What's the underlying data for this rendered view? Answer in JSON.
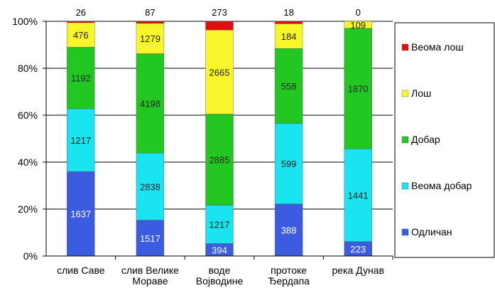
{
  "chart_data": {
    "type": "bar",
    "stacked": "percent",
    "y_tick_labels": [
      "0%",
      "20%",
      "40%",
      "60%",
      "80%",
      "100%"
    ],
    "ylim": [
      0,
      100
    ],
    "grid": true,
    "legend_position": "right",
    "categories": [
      [
        "слив  Саве"
      ],
      [
        "слив  Велике",
        "Мораве"
      ],
      [
        "воде",
        "Војводине"
      ],
      [
        "протоке",
        "Ђердапа"
      ],
      [
        "река Дунав"
      ]
    ],
    "series": [
      {
        "name": "Одличан",
        "color": "#3c5ce0",
        "label_color": "#ffffff",
        "values": [
          1637,
          1517,
          394,
          388,
          223
        ]
      },
      {
        "name": "Веома добар",
        "color": "#19e4ef",
        "label_color": "#222222",
        "values": [
          1217,
          2838,
          1217,
          599,
          1441
        ]
      },
      {
        "name": "Добар",
        "color": "#22c722",
        "label_color": "#222222",
        "values": [
          1192,
          4198,
          2885,
          558,
          1870
        ]
      },
      {
        "name": "Лош",
        "color": "#f8f52a",
        "label_color": "#222222",
        "values": [
          476,
          1279,
          2665,
          184,
          109
        ]
      },
      {
        "name": "Веома лош",
        "color": "#e01010",
        "label_color": "#222222",
        "values": [
          26,
          87,
          273,
          18,
          0
        ]
      }
    ]
  }
}
